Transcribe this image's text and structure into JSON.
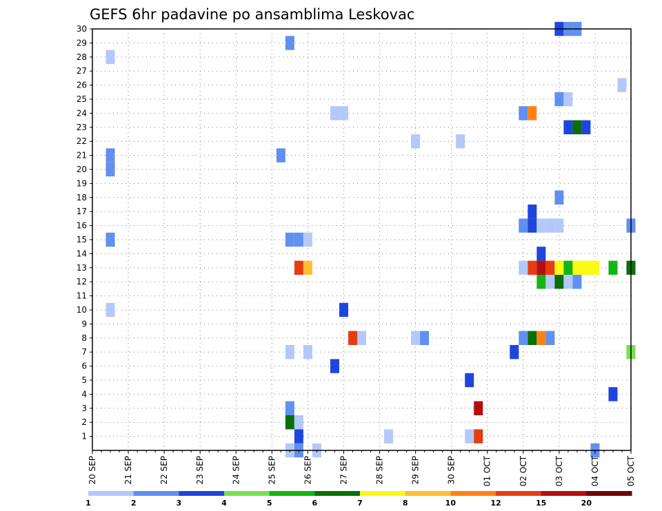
{
  "chart_data": {
    "type": "heatmap",
    "title": "GEFS 6hr padavine po ansamblima Leskovac",
    "xlabel": "",
    "ylabel": "",
    "x_tick_labels": [
      "20 SEP",
      "21 SEP",
      "22 SEP",
      "23 SEP",
      "24 SEP",
      "25 SEP",
      "26 SEP",
      "27 SEP",
      "28 SEP",
      "29 SEP",
      "30 SEP",
      "01 OCT",
      "02 OCT",
      "03 OCT",
      "04 OCT",
      "05 OCT"
    ],
    "y_tick_labels": [
      "1",
      "2",
      "3",
      "4",
      "5",
      "6",
      "7",
      "8",
      "9",
      "10",
      "11",
      "12",
      "13",
      "14",
      "15",
      "16",
      "17",
      "18",
      "19",
      "20",
      "21",
      "22",
      "23",
      "24",
      "25",
      "26",
      "27",
      "28",
      "29",
      "30"
    ],
    "x_range_days": [
      0,
      15
    ],
    "y_range": [
      0,
      30
    ],
    "grid": true,
    "colorbar": {
      "labels": [
        "1",
        "2",
        "3",
        "4",
        "5",
        "6",
        "7",
        "8",
        "10",
        "12",
        "15",
        "20"
      ],
      "colors": [
        "#b4c8fa",
        "#6090f0",
        "#1e46dc",
        "#78e050",
        "#14b414",
        "#0a6e0a",
        "#fafa14",
        "#ffbe32",
        "#ff8214",
        "#e63c14",
        "#b40f0f",
        "#6e0505"
      ]
    },
    "cells_note_units": "t = days after 20 SEP 00Z (6-hour steps), member = ensemble member, level = colorbar class index 0-11",
    "cells": [
      {
        "t": 0.5,
        "member": 28,
        "level": 0
      },
      {
        "t": 0.5,
        "member": 21,
        "level": 1
      },
      {
        "t": 0.5,
        "member": 20,
        "level": 1
      },
      {
        "t": 0.5,
        "member": 15,
        "level": 1
      },
      {
        "t": 0.5,
        "member": 10,
        "level": 0
      },
      {
        "t": 5.5,
        "member": 29,
        "level": 1
      },
      {
        "t": 5.25,
        "member": 21,
        "level": 1
      },
      {
        "t": 5.5,
        "member": 15,
        "level": 1
      },
      {
        "t": 5.75,
        "member": 15,
        "level": 1
      },
      {
        "t": 6.0,
        "member": 15,
        "level": 0
      },
      {
        "t": 5.75,
        "member": 13,
        "level": 9
      },
      {
        "t": 6.0,
        "member": 13,
        "level": 7
      },
      {
        "t": 5.5,
        "member": 7,
        "level": 0
      },
      {
        "t": 6.0,
        "member": 7,
        "level": 0
      },
      {
        "t": 5.5,
        "member": 3,
        "level": 1
      },
      {
        "t": 5.5,
        "member": 2,
        "level": 5
      },
      {
        "t": 5.75,
        "member": 2,
        "level": 0
      },
      {
        "t": 5.75,
        "member": 1,
        "level": 2
      },
      {
        "t": 5.5,
        "member": 0,
        "level": 0
      },
      {
        "t": 5.75,
        "member": 0,
        "level": 1
      },
      {
        "t": 6.25,
        "member": 0,
        "level": 0
      },
      {
        "t": 6.75,
        "member": 24,
        "level": 0
      },
      {
        "t": 7.0,
        "member": 24,
        "level": 0
      },
      {
        "t": 7.0,
        "member": 10,
        "level": 2
      },
      {
        "t": 7.25,
        "member": 8,
        "level": 9
      },
      {
        "t": 7.5,
        "member": 8,
        "level": 0
      },
      {
        "t": 6.75,
        "member": 6,
        "level": 2
      },
      {
        "t": 8.25,
        "member": 1,
        "level": 0
      },
      {
        "t": 9.0,
        "member": 22,
        "level": 0
      },
      {
        "t": 9.0,
        "member": 8,
        "level": 0
      },
      {
        "t": 9.25,
        "member": 8,
        "level": 1
      },
      {
        "t": 10.25,
        "member": 22,
        "level": 0
      },
      {
        "t": 10.5,
        "member": 5,
        "level": 2
      },
      {
        "t": 10.75,
        "member": 3,
        "level": 10
      },
      {
        "t": 10.5,
        "member": 1,
        "level": 0
      },
      {
        "t": 10.75,
        "member": 1,
        "level": 9
      },
      {
        "t": 11.75,
        "member": 7,
        "level": 2
      },
      {
        "t": 12.0,
        "member": 24,
        "level": 1
      },
      {
        "t": 12.25,
        "member": 24,
        "level": 8
      },
      {
        "t": 12.0,
        "member": 16,
        "level": 1
      },
      {
        "t": 12.25,
        "member": 16,
        "level": 2
      },
      {
        "t": 12.5,
        "member": 16,
        "level": 0
      },
      {
        "t": 12.75,
        "member": 16,
        "level": 0
      },
      {
        "t": 13.0,
        "member": 16,
        "level": 0
      },
      {
        "t": 12.25,
        "member": 17,
        "level": 2
      },
      {
        "t": 12.5,
        "member": 14,
        "level": 2
      },
      {
        "t": 12.0,
        "member": 13,
        "level": 0
      },
      {
        "t": 12.25,
        "member": 13,
        "level": 9
      },
      {
        "t": 12.5,
        "member": 13,
        "level": 10
      },
      {
        "t": 12.75,
        "member": 13,
        "level": 9
      },
      {
        "t": 13.0,
        "member": 13,
        "level": 6
      },
      {
        "t": 13.25,
        "member": 13,
        "level": 4
      },
      {
        "t": 13.5,
        "member": 13,
        "level": 6
      },
      {
        "t": 13.75,
        "member": 13,
        "level": 6
      },
      {
        "t": 14.0,
        "member": 13,
        "level": 6
      },
      {
        "t": 14.5,
        "member": 13,
        "level": 4
      },
      {
        "t": 15.0,
        "member": 13,
        "level": 5
      },
      {
        "t": 12.5,
        "member": 12,
        "level": 4
      },
      {
        "t": 12.75,
        "member": 12,
        "level": 0
      },
      {
        "t": 13.0,
        "member": 12,
        "level": 5
      },
      {
        "t": 13.25,
        "member": 12,
        "level": 0
      },
      {
        "t": 13.5,
        "member": 12,
        "level": 1
      },
      {
        "t": 12.0,
        "member": 8,
        "level": 1
      },
      {
        "t": 12.25,
        "member": 8,
        "level": 5
      },
      {
        "t": 12.5,
        "member": 8,
        "level": 8
      },
      {
        "t": 12.75,
        "member": 8,
        "level": 1
      },
      {
        "t": 13.0,
        "member": 30,
        "level": 2
      },
      {
        "t": 13.25,
        "member": 30,
        "level": 1
      },
      {
        "t": 13.5,
        "member": 30,
        "level": 1
      },
      {
        "t": 13.25,
        "member": 23,
        "level": 2
      },
      {
        "t": 13.5,
        "member": 23,
        "level": 5
      },
      {
        "t": 13.75,
        "member": 23,
        "level": 2
      },
      {
        "t": 13.0,
        "member": 25,
        "level": 1
      },
      {
        "t": 13.25,
        "member": 25,
        "level": 0
      },
      {
        "t": 13.0,
        "member": 18,
        "level": 1
      },
      {
        "t": 14.75,
        "member": 26,
        "level": 0
      },
      {
        "t": 15.0,
        "member": 16,
        "level": 1
      },
      {
        "t": 15.0,
        "member": 7,
        "level": 3
      },
      {
        "t": 14.5,
        "member": 4,
        "level": 2
      },
      {
        "t": 14.0,
        "member": 0,
        "level": 1
      }
    ]
  }
}
